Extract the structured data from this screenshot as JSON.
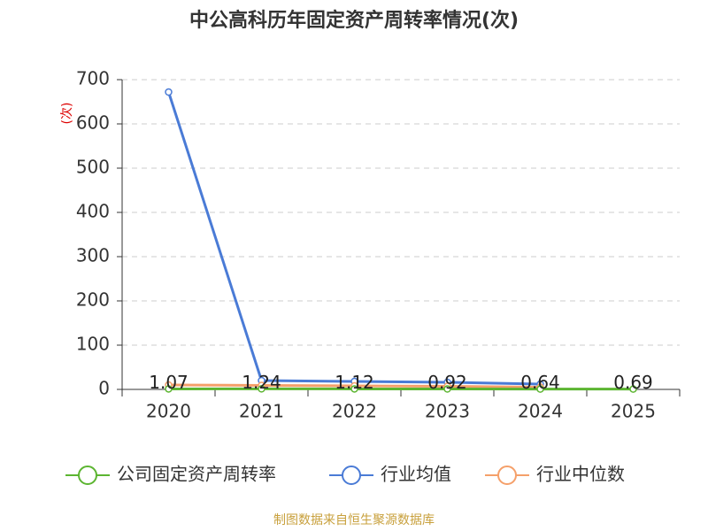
{
  "chart_data": {
    "type": "line",
    "title": "中公高科历年固定资产周转率情况(次)",
    "y_label": "(次)",
    "categories": [
      "2020",
      "2021",
      "2022",
      "2023",
      "2024",
      "2025"
    ],
    "series": [
      {
        "name": "公司固定资产周转率",
        "color": "#5cb531",
        "values": [
          1.07,
          1.24,
          1.12,
          0.92,
          0.64,
          0.69
        ],
        "labels": true
      },
      {
        "name": "行业均值",
        "color": "#4a7bd6",
        "values": [
          672,
          20,
          18,
          16,
          12,
          null
        ],
        "labels": false
      },
      {
        "name": "行业中位数",
        "color": "#f5a06a",
        "values": [
          10,
          9,
          8,
          7,
          5,
          null
        ],
        "labels": false
      }
    ],
    "ylim": [
      0,
      700
    ],
    "yticks": [
      0,
      100,
      200,
      300,
      400,
      500,
      600,
      700
    ],
    "grid": true,
    "source": "制图数据来自恒生聚源数据库"
  }
}
